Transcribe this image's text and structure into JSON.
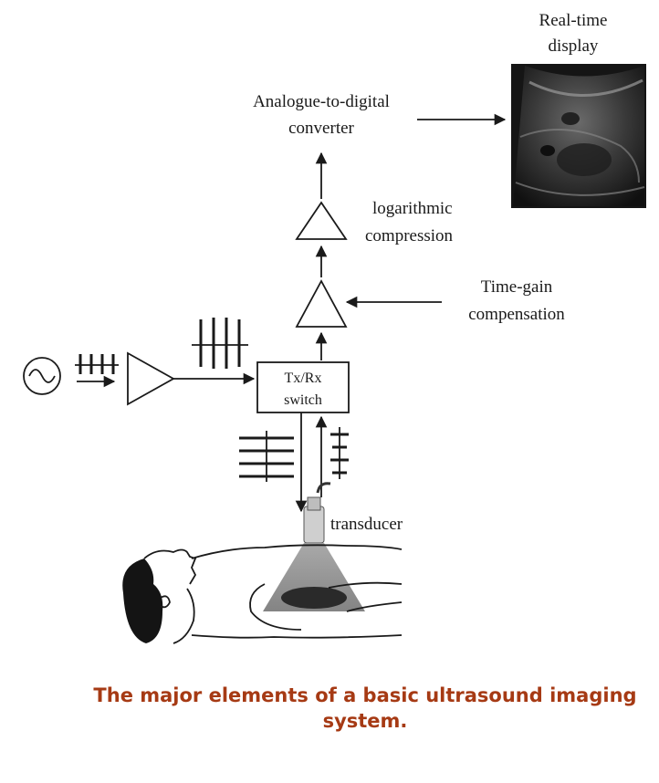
{
  "labels": {
    "display_line1": "Real-time",
    "display_line2": "display",
    "adc_line1": "Analogue-to-digital",
    "adc_line2": "converter",
    "log_line1": "logarithmic",
    "log_line2": "compression",
    "tgc_line1": "Time-gain",
    "tgc_line2": "compensation",
    "switch_line1": "Tx/Rx",
    "switch_line2": "switch",
    "transducer": "transducer"
  },
  "caption": "The major elements of a basic ultrasound imaging system.",
  "colors": {
    "caption": "#a63a14",
    "line": "#1a1a1a",
    "ultrasound_image_bg": "#151515"
  },
  "icons": {
    "oscillator": "sine-wave-source-icon",
    "amplifier": "triangle-amplifier-icon",
    "patient": "reclining-patient-icon",
    "probe": "ultrasound-probe-icon"
  }
}
